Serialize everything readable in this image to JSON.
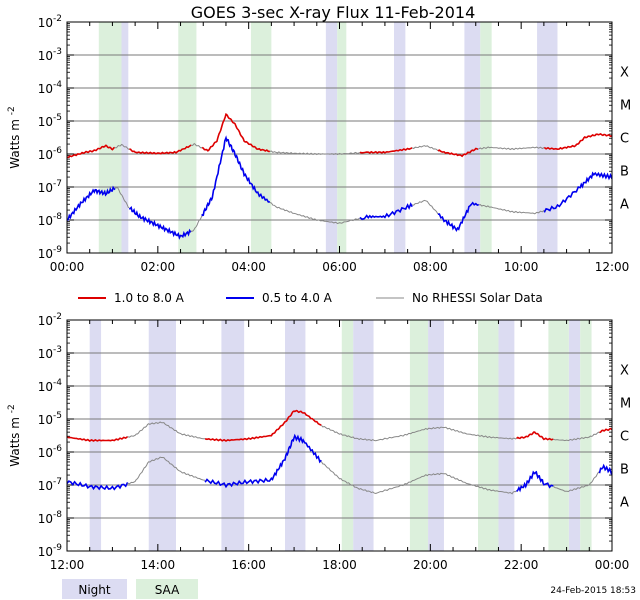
{
  "title": "GOES 3-sec X-ray Flux   11-Feb-2014",
  "footer_timestamp": "24-Feb-2015 18:53",
  "ylabel": "Watts m",
  "ylabel_sup": "-2",
  "legend": [
    {
      "label": "1.0 to 8.0 A",
      "color": "#dd0000"
    },
    {
      "label": "0.5 to 4.0 A",
      "color": "#0000ee"
    },
    {
      "label": "No RHESSI Solar Data",
      "color": "#888888"
    }
  ],
  "band_legend": {
    "night": {
      "label": "Night",
      "color": "#dcdcf2"
    },
    "saa": {
      "label": "SAA",
      "color": "#dcf0dc"
    }
  },
  "chart_data": [
    {
      "type": "line",
      "xunit": "hours",
      "xlim": [
        0,
        12
      ],
      "ylim_log10": [
        -9,
        -2
      ],
      "yscale": "log",
      "grid": "horizontal",
      "xticks": [
        "00:00",
        "02:00",
        "04:00",
        "06:00",
        "08:00",
        "10:00",
        "12:00"
      ],
      "yticks": [
        "10-9",
        "10-8",
        "10-7",
        "10-6",
        "10-5",
        "10-4",
        "10-3",
        "10-2"
      ],
      "class_labels": [
        "A",
        "B",
        "C",
        "M",
        "X"
      ],
      "night": [
        [
          0.85,
          1.35
        ],
        [
          5.7,
          5.95
        ],
        [
          7.2,
          7.45
        ],
        [
          8.75,
          9.1
        ],
        [
          10.35,
          10.8
        ]
      ],
      "saa": [
        [
          0.7,
          1.2
        ],
        [
          2.45,
          2.85
        ],
        [
          4.05,
          4.5
        ],
        [
          5.95,
          6.15
        ],
        [
          9.1,
          9.35
        ]
      ],
      "series": [
        {
          "name": "1.0 to 8.0 A",
          "color": "#dd0000",
          "log10": [
            [
              0.0,
              -6.1
            ],
            [
              0.4,
              -5.95
            ],
            [
              0.6,
              -5.9
            ],
            [
              0.85,
              -5.75
            ],
            [
              1.0,
              -5.85
            ],
            [
              1.2,
              -5.72
            ],
            [
              1.5,
              -5.95
            ],
            [
              2.0,
              -5.98
            ],
            [
              2.4,
              -5.95
            ],
            [
              2.8,
              -5.7
            ],
            [
              3.1,
              -5.9
            ],
            [
              3.3,
              -5.6
            ],
            [
              3.5,
              -4.8
            ],
            [
              3.7,
              -5.1
            ],
            [
              3.9,
              -5.6
            ],
            [
              4.2,
              -5.85
            ],
            [
              4.6,
              -5.95
            ],
            [
              5.0,
              -5.98
            ],
            [
              5.5,
              -6.0
            ],
            [
              6.0,
              -6.0
            ],
            [
              6.6,
              -5.95
            ],
            [
              7.0,
              -5.95
            ],
            [
              7.5,
              -5.85
            ],
            [
              7.9,
              -5.75
            ],
            [
              8.3,
              -5.95
            ],
            [
              8.7,
              -6.05
            ],
            [
              9.0,
              -5.85
            ],
            [
              9.3,
              -5.8
            ],
            [
              9.8,
              -5.85
            ],
            [
              10.3,
              -5.8
            ],
            [
              10.8,
              -5.85
            ],
            [
              11.2,
              -5.75
            ],
            [
              11.4,
              -5.5
            ],
            [
              11.7,
              -5.4
            ],
            [
              12.0,
              -5.45
            ]
          ]
        },
        {
          "name": "0.5 to 4.0 A",
          "color": "#0000ee",
          "log10": [
            [
              0.0,
              -8.0
            ],
            [
              0.3,
              -7.5
            ],
            [
              0.6,
              -7.1
            ],
            [
              0.85,
              -7.2
            ],
            [
              1.1,
              -7.0
            ],
            [
              1.35,
              -7.6
            ],
            [
              1.6,
              -7.9
            ],
            [
              1.9,
              -8.1
            ],
            [
              2.2,
              -8.3
            ],
            [
              2.5,
              -8.5
            ],
            [
              2.8,
              -8.3
            ],
            [
              3.0,
              -7.8
            ],
            [
              3.2,
              -7.3
            ],
            [
              3.5,
              -5.5
            ],
            [
              3.7,
              -6.0
            ],
            [
              3.9,
              -6.6
            ],
            [
              4.2,
              -7.2
            ],
            [
              4.6,
              -7.6
            ],
            [
              5.0,
              -7.8
            ],
            [
              5.5,
              -8.0
            ],
            [
              6.0,
              -8.1
            ],
            [
              6.6,
              -7.9
            ],
            [
              7.0,
              -7.9
            ],
            [
              7.5,
              -7.6
            ],
            [
              7.9,
              -7.4
            ],
            [
              8.3,
              -8.0
            ],
            [
              8.6,
              -8.3
            ],
            [
              8.9,
              -7.5
            ],
            [
              9.3,
              -7.6
            ],
            [
              9.8,
              -7.75
            ],
            [
              10.3,
              -7.8
            ],
            [
              10.8,
              -7.6
            ],
            [
              11.3,
              -7.0
            ],
            [
              11.6,
              -6.6
            ],
            [
              12.0,
              -6.7
            ]
          ]
        }
      ],
      "gray_segments": [
        [
          1.05,
          1.35
        ],
        [
          2.7,
          2.95
        ],
        [
          4.45,
          5.85
        ],
        [
          5.85,
          6.4
        ],
        [
          7.6,
          8.15
        ],
        [
          9.05,
          10.5
        ]
      ]
    },
    {
      "type": "line",
      "xunit": "hours",
      "xlim": [
        12,
        24
      ],
      "ylim_log10": [
        -9,
        -2
      ],
      "yscale": "log",
      "grid": "horizontal",
      "xticks": [
        "12:00",
        "14:00",
        "16:00",
        "18:00",
        "20:00",
        "22:00",
        "00:00"
      ],
      "yticks": [
        "10-9",
        "10-8",
        "10-7",
        "10-6",
        "10-5",
        "10-4",
        "10-3",
        "10-2"
      ],
      "class_labels": [
        "A",
        "B",
        "C",
        "M",
        "X"
      ],
      "night": [
        [
          12.5,
          12.75
        ],
        [
          13.8,
          14.4
        ],
        [
          15.4,
          15.9
        ],
        [
          16.8,
          17.25
        ],
        [
          18.3,
          18.75
        ],
        [
          19.95,
          20.3
        ],
        [
          21.5,
          21.85
        ],
        [
          23.05,
          23.3
        ]
      ],
      "saa": [
        [
          18.05,
          18.3
        ],
        [
          19.55,
          19.95
        ],
        [
          21.05,
          21.5
        ],
        [
          22.6,
          23.05
        ],
        [
          23.3,
          23.55
        ]
      ],
      "series": [
        {
          "name": "1.0 to 8.0 A",
          "color": "#dd0000",
          "log10": [
            [
              12.0,
              -5.55
            ],
            [
              12.5,
              -5.65
            ],
            [
              13.0,
              -5.65
            ],
            [
              13.5,
              -5.5
            ],
            [
              13.8,
              -5.15
            ],
            [
              14.1,
              -5.1
            ],
            [
              14.5,
              -5.45
            ],
            [
              15.0,
              -5.6
            ],
            [
              15.5,
              -5.65
            ],
            [
              16.0,
              -5.6
            ],
            [
              16.5,
              -5.5
            ],
            [
              16.8,
              -5.1
            ],
            [
              17.0,
              -4.75
            ],
            [
              17.2,
              -4.8
            ],
            [
              17.6,
              -5.2
            ],
            [
              18.0,
              -5.45
            ],
            [
              18.4,
              -5.6
            ],
            [
              18.8,
              -5.65
            ],
            [
              19.4,
              -5.5
            ],
            [
              19.9,
              -5.3
            ],
            [
              20.3,
              -5.25
            ],
            [
              20.8,
              -5.45
            ],
            [
              21.3,
              -5.55
            ],
            [
              21.8,
              -5.6
            ],
            [
              22.1,
              -5.55
            ],
            [
              22.3,
              -5.4
            ],
            [
              22.5,
              -5.6
            ],
            [
              23.0,
              -5.65
            ],
            [
              23.5,
              -5.55
            ],
            [
              23.8,
              -5.35
            ],
            [
              24.0,
              -5.3
            ]
          ]
        },
        {
          "name": "0.5 to 4.0 A",
          "color": "#0000ee",
          "log10": [
            [
              12.0,
              -6.9
            ],
            [
              12.5,
              -7.05
            ],
            [
              13.0,
              -7.1
            ],
            [
              13.5,
              -6.9
            ],
            [
              13.8,
              -6.3
            ],
            [
              14.1,
              -6.15
            ],
            [
              14.5,
              -6.6
            ],
            [
              15.0,
              -6.85
            ],
            [
              15.5,
              -7.0
            ],
            [
              16.0,
              -6.9
            ],
            [
              16.5,
              -6.85
            ],
            [
              16.8,
              -6.2
            ],
            [
              17.0,
              -5.55
            ],
            [
              17.2,
              -5.65
            ],
            [
              17.6,
              -6.3
            ],
            [
              18.0,
              -6.8
            ],
            [
              18.4,
              -7.1
            ],
            [
              18.8,
              -7.25
            ],
            [
              19.4,
              -7.0
            ],
            [
              19.9,
              -6.7
            ],
            [
              20.3,
              -6.65
            ],
            [
              20.8,
              -6.95
            ],
            [
              21.3,
              -7.15
            ],
            [
              21.8,
              -7.25
            ],
            [
              22.1,
              -7.0
            ],
            [
              22.3,
              -6.6
            ],
            [
              22.5,
              -6.95
            ],
            [
              23.0,
              -7.2
            ],
            [
              23.5,
              -7.0
            ],
            [
              23.8,
              -6.45
            ],
            [
              24.0,
              -6.6
            ]
          ]
        }
      ],
      "gray_segments": [
        [
          13.3,
          15.0
        ],
        [
          17.6,
          20.3
        ],
        [
          20.3,
          21.9
        ],
        [
          22.7,
          23.7
        ]
      ]
    }
  ]
}
